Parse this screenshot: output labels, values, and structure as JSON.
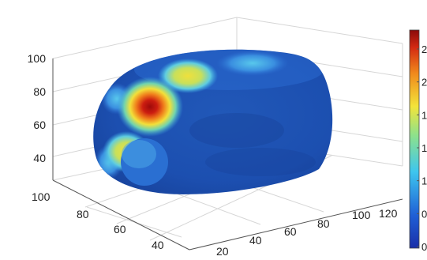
{
  "chart_data": {
    "type": "heatmap",
    "title": "",
    "xlabel": "",
    "ylabel": "",
    "zlabel": "",
    "x_ticks": [
      "20",
      "40",
      "60",
      "80",
      "100",
      "120"
    ],
    "y_ticks": [
      "100",
      "80",
      "60",
      "40"
    ],
    "z_ticks": [
      "100",
      "80",
      "60",
      "40"
    ],
    "colorbar": {
      "colormap": "jet",
      "tick_labels": [
        "2",
        "2",
        "1",
        "1",
        "1",
        "0",
        "0"
      ]
    },
    "surface_regions": [
      {
        "level": "max",
        "color": "#b40000"
      },
      {
        "level": "high",
        "color": "#f08a1c"
      },
      {
        "level": "medium",
        "color": "#e8d63a"
      },
      {
        "level": "low",
        "color": "#4fc2e8"
      },
      {
        "level": "base",
        "color": "#1e55b0"
      }
    ],
    "grid": true
  }
}
